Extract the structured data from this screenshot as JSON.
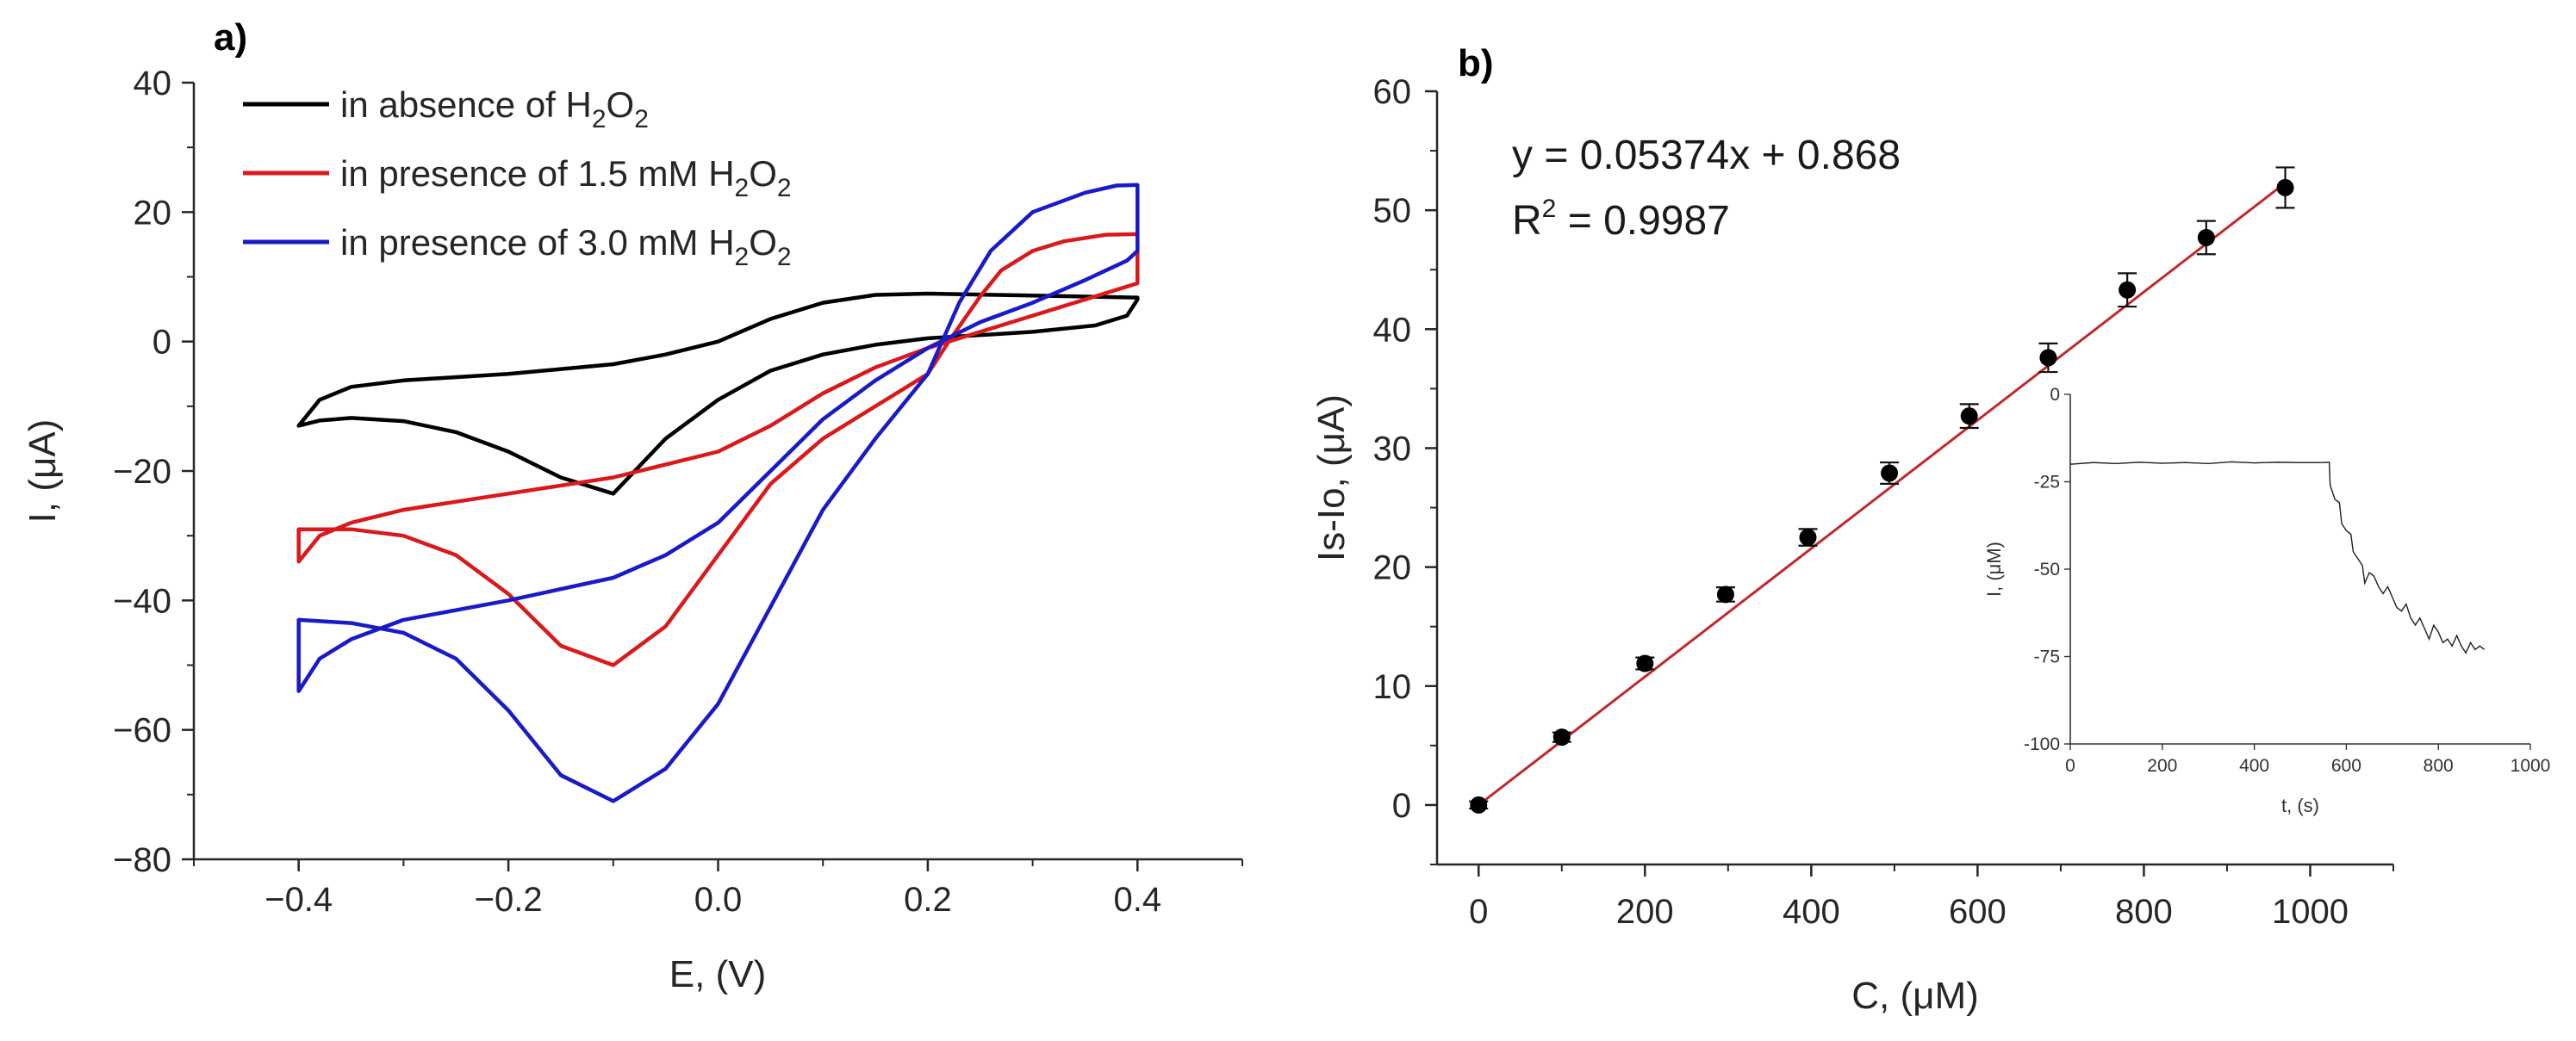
{
  "chart_data": [
    {
      "panel": "a)",
      "type": "line",
      "xlabel": "E, (V)",
      "ylabel": "I, (μA)",
      "xlim": [
        -0.5,
        0.5
      ],
      "ylim": [
        -80,
        40
      ],
      "xticks": [
        -0.4,
        -0.2,
        0.0,
        0.2,
        0.4
      ],
      "xtick_labels": [
        "−0.4",
        "−0.2",
        "0.0",
        "0.2",
        "0.4"
      ],
      "yticks": [
        -80,
        -60,
        -40,
        -20,
        0,
        20,
        40
      ],
      "ytick_labels": [
        "−80",
        "−60",
        "−40",
        "−20",
        "0",
        "20",
        "40"
      ],
      "legend_position": "top-left",
      "series": [
        {
          "name": "in absence of H2O2",
          "label_main": "in absence of H",
          "label_sub1": "2",
          "label_mid": "O",
          "label_sub2": "2",
          "color": "#000000",
          "points": [
            [
              -0.4,
              -13
            ],
            [
              -0.38,
              -9
            ],
            [
              -0.35,
              -7
            ],
            [
              -0.3,
              -6
            ],
            [
              -0.2,
              -5
            ],
            [
              -0.1,
              -3.5
            ],
            [
              -0.05,
              -2
            ],
            [
              0.0,
              0
            ],
            [
              0.05,
              3.5
            ],
            [
              0.1,
              6
            ],
            [
              0.15,
              7.2
            ],
            [
              0.2,
              7.4
            ],
            [
              0.3,
              7.1
            ],
            [
              0.4,
              6.8
            ],
            [
              0.4,
              6.5
            ],
            [
              0.39,
              4
            ],
            [
              0.36,
              2.5
            ],
            [
              0.3,
              1.5
            ],
            [
              0.2,
              0.5
            ],
            [
              0.15,
              -0.5
            ],
            [
              0.1,
              -2
            ],
            [
              0.05,
              -4.5
            ],
            [
              0.0,
              -9
            ],
            [
              -0.05,
              -15
            ],
            [
              -0.1,
              -23.5
            ],
            [
              -0.15,
              -21
            ],
            [
              -0.2,
              -17
            ],
            [
              -0.25,
              -14
            ],
            [
              -0.3,
              -12.3
            ],
            [
              -0.35,
              -11.8
            ],
            [
              -0.38,
              -12.2
            ],
            [
              -0.4,
              -13
            ]
          ]
        },
        {
          "name": "in presence of 1.5 mM H2O2",
          "label_main": "in presence of 1.5 mM H",
          "label_sub1": "2",
          "label_mid": "O",
          "label_sub2": "2",
          "color": "#d9191c",
          "points": [
            [
              -0.4,
              -34
            ],
            [
              -0.38,
              -30
            ],
            [
              -0.35,
              -28
            ],
            [
              -0.3,
              -26
            ],
            [
              -0.2,
              -23.5
            ],
            [
              -0.1,
              -21
            ],
            [
              0.0,
              -17
            ],
            [
              0.05,
              -13
            ],
            [
              0.1,
              -8
            ],
            [
              0.15,
              -4
            ],
            [
              0.2,
              -1
            ],
            [
              0.25,
              1.5
            ],
            [
              0.3,
              4
            ],
            [
              0.35,
              6.5
            ],
            [
              0.39,
              8.5
            ],
            [
              0.4,
              9
            ],
            [
              0.4,
              16.6
            ],
            [
              0.37,
              16.5
            ],
            [
              0.33,
              15.5
            ],
            [
              0.3,
              14
            ],
            [
              0.27,
              11
            ],
            [
              0.25,
              7
            ],
            [
              0.22,
              0
            ],
            [
              0.2,
              -5
            ],
            [
              0.15,
              -10
            ],
            [
              0.1,
              -15
            ],
            [
              0.05,
              -22
            ],
            [
              0.0,
              -33
            ],
            [
              -0.05,
              -44
            ],
            [
              -0.1,
              -50
            ],
            [
              -0.15,
              -47
            ],
            [
              -0.2,
              -39
            ],
            [
              -0.25,
              -33
            ],
            [
              -0.3,
              -30
            ],
            [
              -0.35,
              -29
            ],
            [
              -0.38,
              -29
            ],
            [
              -0.4,
              -29
            ]
          ]
        },
        {
          "name": "in presence of 3.0 mM H2O2",
          "label_main": "in presence of 3.0 mM H",
          "label_sub1": "2",
          "label_mid": "O",
          "label_sub2": "2",
          "color": "#1a1ac8",
          "points": [
            [
              -0.4,
              -54
            ],
            [
              -0.38,
              -49
            ],
            [
              -0.35,
              -46
            ],
            [
              -0.3,
              -43
            ],
            [
              -0.2,
              -40
            ],
            [
              -0.1,
              -36.5
            ],
            [
              -0.05,
              -33
            ],
            [
              0.0,
              -28
            ],
            [
              0.05,
              -20
            ],
            [
              0.1,
              -12
            ],
            [
              0.15,
              -6
            ],
            [
              0.2,
              -1
            ],
            [
              0.25,
              3
            ],
            [
              0.3,
              6
            ],
            [
              0.35,
              9.5
            ],
            [
              0.39,
              12.5
            ],
            [
              0.4,
              14
            ],
            [
              0.4,
              24.2
            ],
            [
              0.38,
              24.1
            ],
            [
              0.35,
              23
            ],
            [
              0.3,
              20
            ],
            [
              0.26,
              14
            ],
            [
              0.23,
              6
            ],
            [
              0.2,
              -5
            ],
            [
              0.15,
              -15
            ],
            [
              0.1,
              -26
            ],
            [
              0.05,
              -41
            ],
            [
              0.0,
              -56
            ],
            [
              -0.05,
              -66
            ],
            [
              -0.1,
              -71
            ],
            [
              -0.15,
              -67
            ],
            [
              -0.2,
              -57
            ],
            [
              -0.25,
              -49
            ],
            [
              -0.3,
              -45
            ],
            [
              -0.35,
              -43.5
            ],
            [
              -0.38,
              -43.2
            ],
            [
              -0.4,
              -43
            ]
          ]
        }
      ]
    },
    {
      "panel": "b)",
      "type": "scatter",
      "xlabel": "C, (μM)",
      "ylabel": "Is-Io, (μA)",
      "xlim": [
        -50,
        1100
      ],
      "ylim": [
        -5,
        60
      ],
      "xticks": [
        0,
        200,
        400,
        600,
        800,
        1000
      ],
      "xtick_labels": [
        "0",
        "200",
        "400",
        "600",
        "800",
        "1000"
      ],
      "yticks": [
        0,
        10,
        20,
        30,
        40,
        50,
        60
      ],
      "ytick_labels": [
        "0",
        "10",
        "20",
        "30",
        "40",
        "50",
        "60"
      ],
      "fit": {
        "equation": "y = 0.05374x + 0.868",
        "r2_label": "R",
        "r2_sup": "2",
        "r2_value": " = 0.9987",
        "slope": 0.05374,
        "intercept": 0.868,
        "x_range": [
          0,
          970
        ],
        "color": "#c0282a"
      },
      "points": [
        {
          "x": 0,
          "y": 0.0,
          "err": 0.3
        },
        {
          "x": 100,
          "y": 5.7,
          "err": 0.4
        },
        {
          "x": 200,
          "y": 11.9,
          "err": 0.5
        },
        {
          "x": 297,
          "y": 17.7,
          "err": 0.6
        },
        {
          "x": 396,
          "y": 22.5,
          "err": 0.7
        },
        {
          "x": 494,
          "y": 27.9,
          "err": 0.9
        },
        {
          "x": 590,
          "y": 32.7,
          "err": 1.0
        },
        {
          "x": 685,
          "y": 37.6,
          "err": 1.2
        },
        {
          "x": 780,
          "y": 43.3,
          "err": 1.4
        },
        {
          "x": 875,
          "y": 47.7,
          "err": 1.4
        },
        {
          "x": 970,
          "y": 51.9,
          "err": 1.7
        }
      ],
      "inset": {
        "type": "line",
        "xlabel": "t, (s)",
        "ylabel": "I, (μM)",
        "xlim": [
          0,
          1000
        ],
        "ylim": [
          -100,
          0
        ],
        "xticks": [
          0,
          200,
          400,
          600,
          800,
          1000
        ],
        "xtick_labels": [
          "0",
          "200",
          "400",
          "600",
          "800",
          "1000"
        ],
        "yticks": [
          0,
          -25,
          -50,
          -75,
          -100
        ],
        "ytick_labels": [
          "0",
          "-25",
          "-50",
          "-75",
          "-100"
        ],
        "series_color": "#222222",
        "fit_color": "#c0282a",
        "points": [
          [
            0,
            -20
          ],
          [
            50,
            -19.5
          ],
          [
            100,
            -19.8
          ],
          [
            150,
            -19.4
          ],
          [
            200,
            -19.7
          ],
          [
            250,
            -19.5
          ],
          [
            300,
            -19.8
          ],
          [
            350,
            -19.3
          ],
          [
            400,
            -19.6
          ],
          [
            450,
            -19.4
          ],
          [
            500,
            -19.5
          ],
          [
            550,
            -19.5
          ],
          [
            563,
            -19.4
          ],
          [
            565,
            -26
          ],
          [
            575,
            -30
          ],
          [
            585,
            -31
          ],
          [
            590,
            -37
          ],
          [
            600,
            -39
          ],
          [
            610,
            -40
          ],
          [
            615,
            -45
          ],
          [
            625,
            -47
          ],
          [
            635,
            -49
          ],
          [
            640,
            -54
          ],
          [
            650,
            -51
          ],
          [
            660,
            -52
          ],
          [
            670,
            -55
          ],
          [
            680,
            -57
          ],
          [
            690,
            -55
          ],
          [
            700,
            -58
          ],
          [
            710,
            -61
          ],
          [
            720,
            -62
          ],
          [
            730,
            -60
          ],
          [
            740,
            -64
          ],
          [
            750,
            -66
          ],
          [
            760,
            -64
          ],
          [
            770,
            -67
          ],
          [
            780,
            -70
          ],
          [
            790,
            -66
          ],
          [
            800,
            -68
          ],
          [
            810,
            -71
          ],
          [
            820,
            -70
          ],
          [
            830,
            -72
          ],
          [
            840,
            -69
          ],
          [
            850,
            -72
          ],
          [
            860,
            -74
          ],
          [
            870,
            -71
          ],
          [
            880,
            -73
          ],
          [
            890,
            -72
          ],
          [
            900,
            -73
          ]
        ]
      }
    }
  ]
}
